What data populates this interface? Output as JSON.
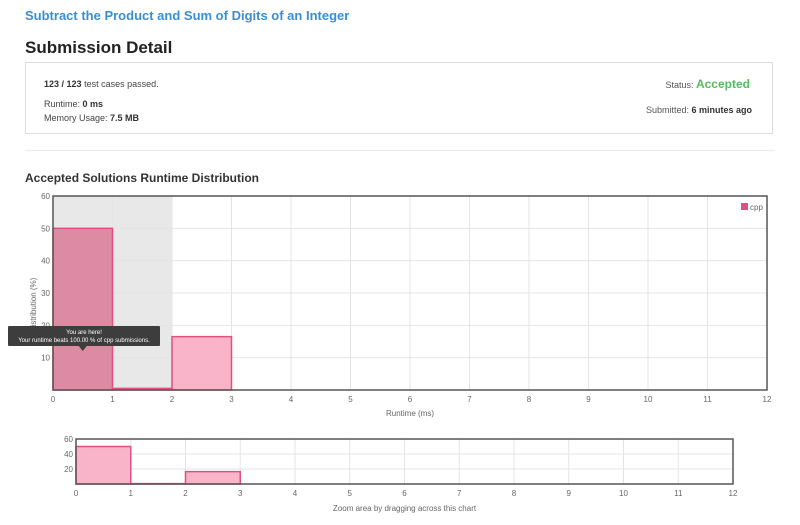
{
  "problem": {
    "title": "Subtract the Product and Sum of Digits of an Integer"
  },
  "page": {
    "title": "Submission Detail"
  },
  "submission": {
    "tests_passed": "123 / 123",
    "tests_suffix": "test cases passed.",
    "runtime_label": "Runtime:",
    "runtime_value": "0 ms",
    "memory_label": "Memory Usage:",
    "memory_value": "7.5 MB",
    "status_label": "Status:",
    "status_value": "Accepted",
    "submitted_label": "Submitted:",
    "submitted_value": "6 minutes ago"
  },
  "colors": {
    "bar_fill": "#f9b4c9",
    "bar_stroke": "#e0507f",
    "highlight_fill": "#dd8aa5",
    "accepted": "#5cb85c",
    "link": "#3b8ed2"
  },
  "chart_data": [
    {
      "type": "bar",
      "title": "Accepted Solutions Runtime Distribution",
      "xlabel": "Runtime (ms)",
      "ylabel": "Distribution (%)",
      "x": [
        0,
        1,
        2
      ],
      "bin_width": 1,
      "series": [
        {
          "name": "cpp",
          "values": [
            50,
            0.5,
            16.5
          ]
        }
      ],
      "xlim": [
        0,
        12
      ],
      "ylim": [
        0,
        60
      ],
      "x_ticks": [
        "0",
        "1",
        "2",
        "3",
        "4",
        "5",
        "6",
        "7",
        "8",
        "9",
        "10",
        "11",
        "12"
      ],
      "y_ticks": [
        "10",
        "20",
        "30",
        "40",
        "50",
        "60"
      ],
      "grid": true,
      "legend": "top-right",
      "highlight_range": [
        0,
        2
      ],
      "tooltip": {
        "line1": "You are here!",
        "line2": "Your runtime beats 100.00 % of cpp submissions."
      }
    },
    {
      "type": "bar",
      "title": "",
      "xlabel": "Zoom area by dragging across this chart",
      "x": [
        0,
        1,
        2
      ],
      "bin_width": 1,
      "series": [
        {
          "values": [
            50,
            0.5,
            16.5
          ]
        }
      ],
      "xlim": [
        0,
        12
      ],
      "ylim": [
        0,
        60
      ],
      "x_ticks": [
        "0",
        "1",
        "2",
        "3",
        "4",
        "5",
        "6",
        "7",
        "8",
        "9",
        "10",
        "11",
        "12"
      ],
      "y_ticks": [
        "20",
        "40",
        "60"
      ],
      "grid": true
    }
  ]
}
